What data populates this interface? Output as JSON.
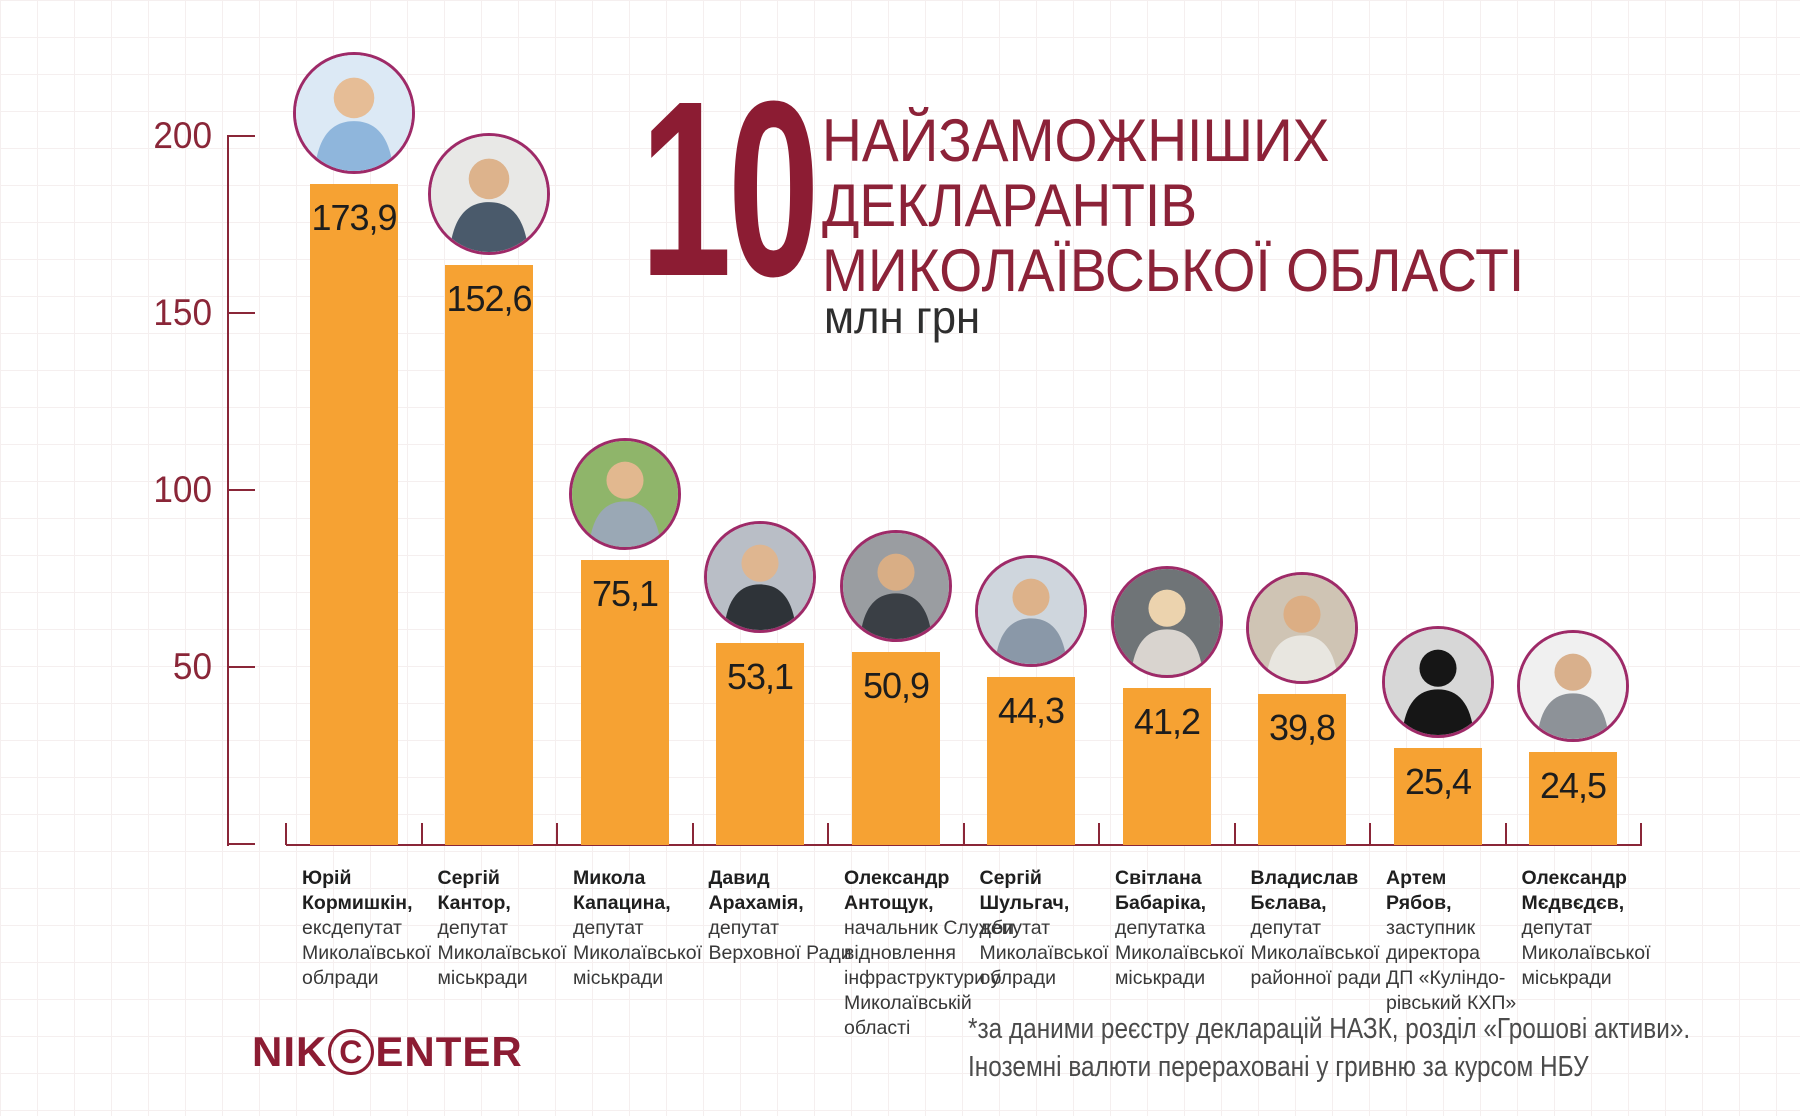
{
  "title": {
    "rank_number": "10",
    "lines": [
      "НАЙЗАМОЖНІШИХ",
      "ДЕКЛАРАНТІВ",
      "МИКОЛАЇВСЬКОЇ ОБЛАСТІ"
    ],
    "unit": "млн грн"
  },
  "footer": {
    "logo_pre": "NIK",
    "logo_c": "C",
    "logo_post": "ENTER",
    "note_line1": "*за даними реєстру декларацій НАЗК, розділ «Грошові активи».",
    "note_line2": "Іноземні валюти перераховані у гривню за курсом НБУ"
  },
  "colors": {
    "maroon": "#8C1C33",
    "axis": "#8A2638",
    "orange": "#F6A233",
    "ring": "#9E2A68"
  },
  "chart_data": {
    "type": "bar",
    "title": "10 найзаможніших декларантів Миколаївської області",
    "xlabel": "",
    "ylabel": "млн грн",
    "ylim": [
      0,
      200
    ],
    "yticks": [
      200,
      150,
      100,
      50
    ],
    "grid": true,
    "legend": "none",
    "categories": [
      "Юрій Кормишкін",
      "Сергій Кантор",
      "Микола Капацина",
      "Давид Арахамія",
      "Олександр Антощук",
      "Сергій Шульгач",
      "Світлана Бабаріка",
      "Владислав Бєлава",
      "Артем Рябов",
      "Олександр Мєдвєдєв"
    ],
    "values": [
      173.9,
      152.6,
      75.1,
      53.1,
      50.9,
      44.3,
      41.2,
      39.8,
      25.4,
      24.5
    ],
    "value_labels": [
      "173,9",
      "152,6",
      "75,1",
      "53,1",
      "50,9",
      "44,3",
      "41,2",
      "39,8",
      "25,4",
      "24,5"
    ],
    "people": [
      {
        "name_lines": [
          "Юрій",
          "Кормишкін,"
        ],
        "role_lines": [
          "ексдепутат",
          "Миколаївської",
          "облради"
        ],
        "avatar": {
          "bg": "#dce9f5",
          "body": "#8fb6dc",
          "head": "#e6bd96"
        }
      },
      {
        "name_lines": [
          "Сергій",
          "Кантор,"
        ],
        "role_lines": [
          "депутат",
          "Миколаївської",
          "міськради"
        ],
        "avatar": {
          "bg": "#e8e8e6",
          "body": "#4a5a6b",
          "head": "#ddb38c"
        }
      },
      {
        "name_lines": [
          "Микола",
          "Капацина,"
        ],
        "role_lines": [
          "депутат",
          "Миколаївської",
          "міськради"
        ],
        "avatar": {
          "bg": "#8fb56a",
          "body": "#9aa8b5",
          "head": "#e2b88f"
        }
      },
      {
        "name_lines": [
          "Давид",
          "Арахамія,"
        ],
        "role_lines": [
          "депутат",
          "Верховної Ради"
        ],
        "avatar": {
          "bg": "#b9bec6",
          "body": "#2e3338",
          "head": "#dfb690"
        }
      },
      {
        "name_lines": [
          "Олександр",
          "Антощук,"
        ],
        "role_lines": [
          "начальник Служби",
          "відновлення",
          "інфраструктури у",
          "Миколаївській",
          "області"
        ],
        "avatar": {
          "bg": "#9a9da1",
          "body": "#3a3f45",
          "head": "#d9ae85"
        }
      },
      {
        "name_lines": [
          "Сергій",
          "Шульгач,"
        ],
        "role_lines": [
          "депутат",
          "Миколаївської",
          "облради"
        ],
        "avatar": {
          "bg": "#cfd6dd",
          "body": "#8a98a8",
          "head": "#ddb28a"
        }
      },
      {
        "name_lines": [
          "Світлана",
          "Бабаріка,"
        ],
        "role_lines": [
          "депутатка",
          "Миколаївської",
          "міськради"
        ],
        "avatar": {
          "bg": "#6f7477",
          "body": "#d9d4cf",
          "head": "#ecd3ae"
        }
      },
      {
        "name_lines": [
          "Владислав",
          "Бєлава,"
        ],
        "role_lines": [
          "депутат",
          "Миколаївської",
          "районної ради"
        ],
        "avatar": {
          "bg": "#cfc4b4",
          "body": "#e8e6e0",
          "head": "#dcae84"
        }
      },
      {
        "name_lines": [
          "Артем",
          "Рябов,"
        ],
        "role_lines": [
          "заступник",
          "директора",
          "ДП «Куліндо-",
          "рівський КХП»"
        ],
        "avatar": {
          "bg": "#d7d7d7",
          "body": "#161616",
          "head": "#161616"
        },
        "silhouette": true
      },
      {
        "name_lines": [
          "Олександр",
          "Мєдвєдєв,"
        ],
        "role_lines": [
          "депутат",
          "Миколаївської",
          "міськради"
        ],
        "avatar": {
          "bg": "#f0f0f0",
          "body": "#8d9298",
          "head": "#d9b08c"
        }
      }
    ]
  }
}
